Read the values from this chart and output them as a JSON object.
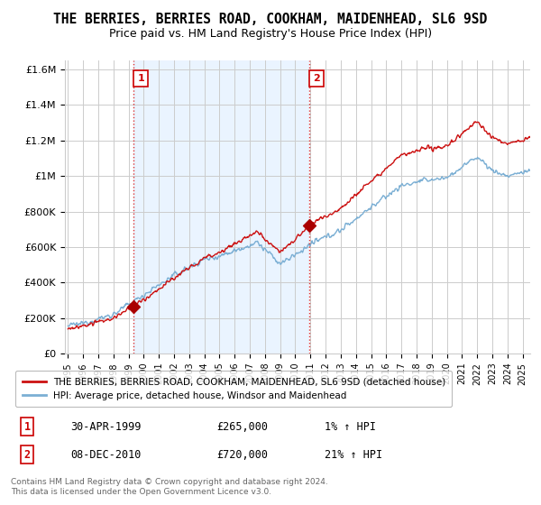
{
  "title": "THE BERRIES, BERRIES ROAD, COOKHAM, MAIDENHEAD, SL6 9SD",
  "subtitle": "Price paid vs. HM Land Registry's House Price Index (HPI)",
  "title_fontsize": 10.5,
  "subtitle_fontsize": 9,
  "ylim": [
    0,
    1650000
  ],
  "yticks": [
    0,
    200000,
    400000,
    600000,
    800000,
    1000000,
    1200000,
    1400000,
    1600000
  ],
  "ytick_labels": [
    "£0",
    "£200K",
    "£400K",
    "£600K",
    "£800K",
    "£1M",
    "£1.2M",
    "£1.4M",
    "£1.6M"
  ],
  "xlim_start": 1994.8,
  "xlim_end": 2025.5,
  "xticks": [
    1995,
    1996,
    1997,
    1998,
    1999,
    2000,
    2001,
    2002,
    2003,
    2004,
    2005,
    2006,
    2007,
    2008,
    2009,
    2010,
    2011,
    2012,
    2013,
    2014,
    2015,
    2016,
    2017,
    2018,
    2019,
    2020,
    2021,
    2022,
    2023,
    2024,
    2025
  ],
  "hpi_color": "#7bafd4",
  "price_color": "#cc1111",
  "marker_color": "#aa0000",
  "vline_color": "#dd3333",
  "vline_style": ":",
  "grid_color": "#cccccc",
  "shade_color": "#ddeeff",
  "background_color": "#ffffff",
  "legend_label_price": "THE BERRIES, BERRIES ROAD, COOKHAM, MAIDENHEAD, SL6 9SD (detached house)",
  "legend_label_hpi": "HPI: Average price, detached house, Windsor and Maidenhead",
  "sale1_year": 1999.33,
  "sale1_price": 265000,
  "sale1_label": "1",
  "sale1_date": "30-APR-1999",
  "sale1_hpi_pct": "1%",
  "sale2_year": 2010.92,
  "sale2_price": 720000,
  "sale2_label": "2",
  "sale2_date": "08-DEC-2010",
  "sale2_hpi_pct": "21%",
  "footer1": "Contains HM Land Registry data © Crown copyright and database right 2024.",
  "footer2": "This data is licensed under the Open Government Licence v3.0."
}
